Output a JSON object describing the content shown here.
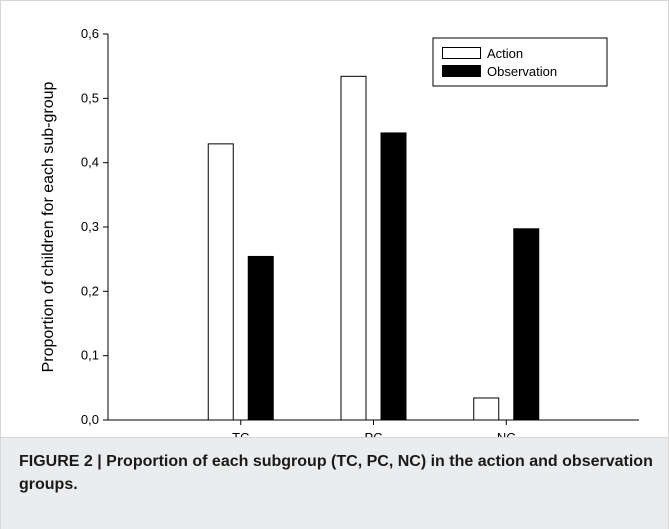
{
  "chart_data": {
    "type": "bar",
    "categories": [
      "TC",
      "PC",
      "NC"
    ],
    "series": [
      {
        "name": "Action",
        "values": [
          0.43,
          0.535,
          0.035
        ],
        "fill": "#ffffff",
        "stroke": "#000000"
      },
      {
        "name": "Observation",
        "values": [
          0.255,
          0.447,
          0.298
        ],
        "fill": "#000000",
        "stroke": "#000000"
      }
    ],
    "ylabel": "Proportion of children for each sub-group",
    "xlabel": "",
    "ylim": [
      0,
      0.6
    ],
    "yticks": [
      0.0,
      0.1,
      0.2,
      0.3,
      0.4,
      0.5,
      0.6
    ],
    "ytick_labels": [
      "0,0",
      "0,1",
      "0,2",
      "0,3",
      "0,4",
      "0,5",
      "0,6"
    ],
    "grid": false,
    "legend_position": "top-right"
  },
  "caption": "FIGURE 2 | Proportion of each subgroup (TC, PC, NC) in the action and observation groups."
}
